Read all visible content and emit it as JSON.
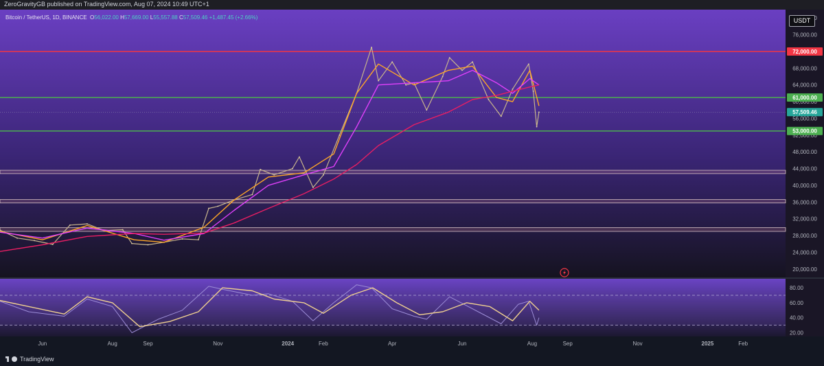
{
  "header": {
    "published": "ZeroGravityGB published on TradingView.com, Aug 07, 2024 10:49 UTC+1",
    "symbol": "Bitcoin / TetherUS, 1D, BINANCE",
    "ohlc": {
      "o_label": "O",
      "o": "56,022.00",
      "h_label": "H",
      "h": "57,669.00",
      "l_label": "L",
      "l": "55,557.88",
      "c_label": "C",
      "c": "57,509.46",
      "change": "+1,487.45 (+2.66%)"
    },
    "currency": "USDT"
  },
  "footer": {
    "brand": "TradingView"
  },
  "colors": {
    "resistance": "#f23645",
    "support": "#4caf50",
    "last_price": "#26a69a",
    "ema_fast": "#ffa726",
    "ema_mid": "#e040fb",
    "ema_slow": "#e91e63",
    "rsi_line": "#9c8cd6",
    "rsi_ma": "#f0d090"
  },
  "chart_data": [
    {
      "type": "line",
      "name_shown": "Bitcoin / TetherUS, 1D, BINANCE",
      "y_ticks": [
        "80,000.00",
        "76,000.00",
        "68,000.00",
        "64,000.00",
        "60,000.00",
        "56,000.00",
        "52,000.00",
        "48,000.00",
        "44,000.00",
        "40,000.00",
        "36,000.00",
        "32,000.00",
        "28,000.00",
        "24,000.00",
        "20,000.00"
      ],
      "y_tick_values": [
        80000,
        76000,
        68000,
        64000,
        60000,
        56000,
        52000,
        48000,
        44000,
        40000,
        36000,
        32000,
        28000,
        24000,
        20000
      ],
      "ylim": [
        18000,
        82000
      ],
      "x_ticks": [
        "Jun",
        "Aug",
        "Sep",
        "Nov",
        "2024",
        "Feb",
        "Apr",
        "Jun",
        "Aug",
        "Sep",
        "Nov",
        "2025",
        "Feb"
      ],
      "x_tick_dates": [
        "2023-06-01",
        "2023-08-01",
        "2023-09-01",
        "2023-11-01",
        "2024-01-01",
        "2024-02-01",
        "2024-04-01",
        "2024-06-01",
        "2024-08-01",
        "2024-09-01",
        "2024-11-01",
        "2025-01-01",
        "2025-02-01"
      ],
      "xlim": [
        "2023-04-25",
        "2025-03-10"
      ],
      "price_labels": [
        {
          "label": "72,000.00",
          "value": 72000,
          "kind": "resistance"
        },
        {
          "label": "61,000.00",
          "value": 61000,
          "kind": "support"
        },
        {
          "label": "57,509.46",
          "value": 57509.46,
          "kind": "last"
        },
        {
          "label": "53,000.00",
          "value": 53000,
          "kind": "support"
        }
      ],
      "horizontal_zones": [
        {
          "low": 42800,
          "high": 43600
        },
        {
          "low": 35800,
          "high": 36600
        },
        {
          "low": 29000,
          "high": 29900
        }
      ],
      "price_series": {
        "x": [
          "2023-04-25",
          "2023-05-10",
          "2023-05-25",
          "2023-06-10",
          "2023-06-25",
          "2023-07-10",
          "2023-07-25",
          "2023-08-10",
          "2023-08-18",
          "2023-09-01",
          "2023-09-15",
          "2023-10-01",
          "2023-10-15",
          "2023-10-24",
          "2023-11-01",
          "2023-11-15",
          "2023-12-01",
          "2023-12-08",
          "2023-12-20",
          "2024-01-05",
          "2024-01-11",
          "2024-01-23",
          "2024-02-01",
          "2024-02-15",
          "2024-03-01",
          "2024-03-14",
          "2024-03-20",
          "2024-04-01",
          "2024-04-13",
          "2024-04-20",
          "2024-05-01",
          "2024-05-15",
          "2024-05-21",
          "2024-06-01",
          "2024-06-10",
          "2024-06-24",
          "2024-07-05",
          "2024-07-15",
          "2024-07-29",
          "2024-08-02",
          "2024-08-05",
          "2024-08-07"
        ],
        "close": [
          29300,
          27400,
          26800,
          25900,
          30500,
          30800,
          29200,
          29400,
          26100,
          25800,
          26400,
          27200,
          27000,
          34500,
          35000,
          36500,
          37800,
          43800,
          42500,
          44000,
          46800,
          39500,
          42500,
          52000,
          62000,
          73000,
          65000,
          69500,
          64000,
          64500,
          58000,
          66000,
          70500,
          67500,
          69500,
          60500,
          56500,
          63000,
          69000,
          62500,
          54000,
          57509
        ]
      },
      "series": [
        {
          "role": "ema_fast",
          "x": [
            "2023-04-25",
            "2023-06-01",
            "2023-07-10",
            "2023-08-20",
            "2023-09-15",
            "2023-10-20",
            "2023-11-15",
            "2023-12-15",
            "2024-01-15",
            "2024-02-10",
            "2024-03-01",
            "2024-03-20",
            "2024-04-20",
            "2024-05-20",
            "2024-06-10",
            "2024-07-01",
            "2024-07-15",
            "2024-07-30",
            "2024-08-07"
          ],
          "values": [
            29000,
            27000,
            30400,
            27000,
            26400,
            30000,
            36500,
            42000,
            43000,
            47500,
            62000,
            69000,
            64000,
            67500,
            68500,
            61000,
            60000,
            67500,
            59000
          ]
        },
        {
          "role": "ema_mid",
          "x": [
            "2023-04-25",
            "2023-06-01",
            "2023-07-10",
            "2023-08-20",
            "2023-09-15",
            "2023-10-20",
            "2023-11-15",
            "2023-12-15",
            "2024-01-15",
            "2024-02-10",
            "2024-03-01",
            "2024-03-20",
            "2024-04-20",
            "2024-05-20",
            "2024-06-10",
            "2024-07-01",
            "2024-07-15",
            "2024-07-30",
            "2024-08-07"
          ],
          "values": [
            28800,
            27400,
            29800,
            28500,
            26900,
            28500,
            34000,
            40000,
            42500,
            44500,
            54000,
            64000,
            64500,
            65000,
            67500,
            64500,
            62000,
            65500,
            64000
          ]
        },
        {
          "role": "ema_slow",
          "x": [
            "2023-04-25",
            "2023-06-01",
            "2023-07-10",
            "2023-08-20",
            "2023-09-15",
            "2023-10-20",
            "2023-11-15",
            "2023-12-15",
            "2024-01-15",
            "2024-02-10",
            "2024-03-01",
            "2024-03-20",
            "2024-04-20",
            "2024-05-20",
            "2024-06-10",
            "2024-07-01",
            "2024-07-15",
            "2024-07-30",
            "2024-08-07"
          ],
          "values": [
            24200,
            25800,
            27800,
            28500,
            28300,
            28600,
            31000,
            34500,
            38000,
            41500,
            45000,
            49500,
            54500,
            57500,
            60500,
            61500,
            62500,
            63500,
            64000
          ]
        }
      ]
    },
    {
      "type": "line",
      "y_ticks": [
        "80.00",
        "60.00",
        "40.00",
        "20.00"
      ],
      "y_tick_values": [
        80,
        60,
        40,
        20
      ],
      "ylim": [
        15,
        92
      ],
      "bands": [
        70,
        30
      ],
      "series": [
        {
          "role": "rsi",
          "x": [
            "2023-04-25",
            "2023-05-20",
            "2023-06-20",
            "2023-07-10",
            "2023-08-01",
            "2023-08-18",
            "2023-09-10",
            "2023-10-01",
            "2023-10-24",
            "2023-11-05",
            "2023-12-01",
            "2023-12-15",
            "2024-01-05",
            "2024-01-23",
            "2024-02-10",
            "2024-03-01",
            "2024-03-14",
            "2024-04-01",
            "2024-04-20",
            "2024-05-01",
            "2024-05-21",
            "2024-06-15",
            "2024-07-05",
            "2024-07-20",
            "2024-07-29",
            "2024-08-05",
            "2024-08-07"
          ],
          "values": [
            62,
            48,
            42,
            65,
            55,
            20,
            38,
            50,
            82,
            78,
            70,
            72,
            62,
            36,
            60,
            84,
            80,
            52,
            42,
            38,
            68,
            48,
            32,
            58,
            62,
            30,
            40
          ]
        },
        {
          "role": "rsi_ma",
          "x": [
            "2023-04-25",
            "2023-05-20",
            "2023-06-20",
            "2023-07-10",
            "2023-08-01",
            "2023-08-25",
            "2023-09-20",
            "2023-10-15",
            "2023-11-05",
            "2023-12-01",
            "2023-12-20",
            "2024-01-15",
            "2024-02-01",
            "2024-02-25",
            "2024-03-15",
            "2024-04-05",
            "2024-04-25",
            "2024-05-15",
            "2024-06-05",
            "2024-06-25",
            "2024-07-15",
            "2024-07-30",
            "2024-08-07"
          ],
          "values": [
            63,
            55,
            45,
            68,
            60,
            28,
            35,
            48,
            80,
            76,
            65,
            60,
            46,
            70,
            80,
            60,
            44,
            48,
            60,
            55,
            36,
            62,
            50
          ]
        }
      ]
    }
  ]
}
